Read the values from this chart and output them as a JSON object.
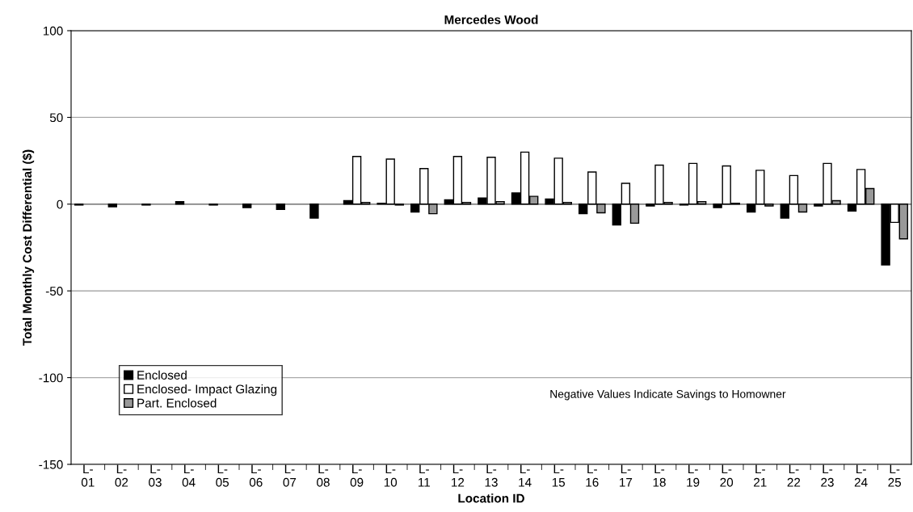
{
  "chart_data": {
    "type": "bar",
    "title": "Mercedes Wood",
    "xlabel": "Location ID",
    "ylabel": "Total Monthly Cost Differential ($)",
    "categories": [
      "L-\n01",
      "L-\n02",
      "L-\n03",
      "L-\n04",
      "L-\n05",
      "L-\n06",
      "L-\n07",
      "L-\n08",
      "L-\n09",
      "L-\n10",
      "L-\n11",
      "L-\n12",
      "L-\n13",
      "L-\n14",
      "L-\n15",
      "L-\n16",
      "L-\n17",
      "L-\n18",
      "L-\n19",
      "L-\n20",
      "L-\n21",
      "L-\n22",
      "L-\n23",
      "L-\n24",
      "L-\n25"
    ],
    "series": [
      {
        "name": "Enclosed",
        "color": "#000000",
        "values": [
          -0.5,
          -1.5,
          -0.5,
          1.5,
          -0.5,
          -2,
          -3,
          -8,
          2,
          0.5,
          -4.5,
          2.5,
          3.5,
          6.5,
          3,
          -5.5,
          -12,
          -1,
          -0.5,
          -2,
          -4.5,
          -8,
          -1,
          -4,
          -35
        ]
      },
      {
        "name": "Enclosed- Impact Glazing",
        "color": "#ffffff",
        "values": [
          null,
          null,
          null,
          null,
          null,
          null,
          null,
          null,
          27.5,
          26,
          20.5,
          27.5,
          27,
          30,
          26.5,
          18.5,
          12,
          22.5,
          23.5,
          22,
          19.5,
          16.5,
          23.5,
          20,
          -10.5
        ]
      },
      {
        "name": "Part. Enclosed",
        "color": "#999999",
        "values": [
          null,
          null,
          null,
          null,
          null,
          null,
          null,
          null,
          1,
          -0.5,
          -5.5,
          1,
          1.5,
          4.5,
          1,
          -5,
          -11,
          1,
          1.5,
          0.5,
          -1,
          -4.5,
          2,
          9,
          -20
        ]
      }
    ],
    "ylim": [
      -150,
      100
    ],
    "yticks": [
      -150,
      -100,
      -50,
      0,
      50,
      100
    ],
    "grid": "y",
    "legend": "bottom left",
    "annotations": [
      "Negative Values Indicate Savings to Homowner"
    ]
  }
}
